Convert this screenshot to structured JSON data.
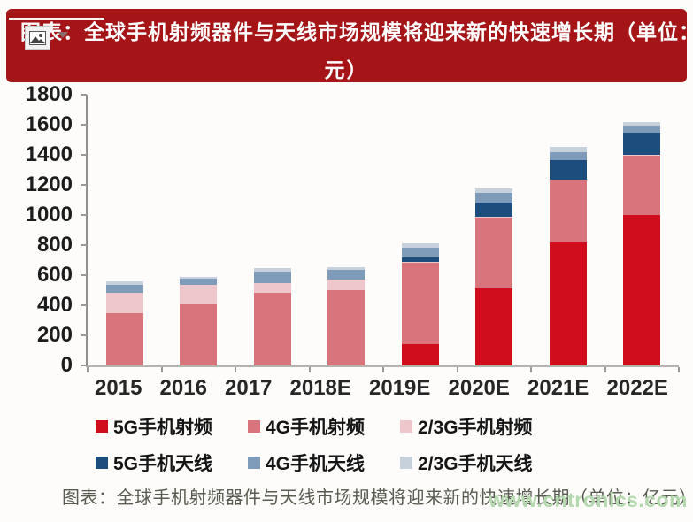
{
  "header": {
    "title_line1": "图表：全球手机射频器件与天线市场规模将迎来新的快速增长期（单位：亿",
    "title_line2": "元）",
    "bg_color": "#a51518"
  },
  "chart_data": {
    "type": "bar",
    "stacked": true,
    "title": "全球手机射频器件与天线市场规模（单位：亿元）",
    "xlabel": "",
    "ylabel": "",
    "unit": "亿元",
    "categories": [
      "2015",
      "2016",
      "2017",
      "2018E",
      "2019E",
      "2020E",
      "2021E",
      "2022E"
    ],
    "series": [
      {
        "name": "5G手机射频",
        "color": "#cf0d1c",
        "values": [
          0,
          0,
          0,
          0,
          140,
          510,
          815,
          1000
        ]
      },
      {
        "name": "4G手机射频",
        "color": "#d8747b",
        "values": [
          345,
          405,
          480,
          500,
          540,
          470,
          415,
          395
        ]
      },
      {
        "name": "2/3G手机射频",
        "color": "#eec7cc",
        "values": [
          140,
          130,
          70,
          70,
          10,
          10,
          5,
          5
        ]
      },
      {
        "name": "5G手机天线",
        "color": "#1d4d7c",
        "values": [
          0,
          0,
          0,
          0,
          25,
          95,
          130,
          145
        ]
      },
      {
        "name": "4G手机天线",
        "color": "#7e9bb9",
        "values": [
          50,
          40,
          75,
          65,
          70,
          60,
          55,
          50
        ]
      },
      {
        "name": "2/3G手机天线",
        "color": "#c7d1db",
        "values": [
          25,
          15,
          20,
          20,
          25,
          30,
          35,
          20
        ]
      }
    ],
    "ylim": [
      0,
      1800
    ],
    "ytick_step": 200,
    "grid": false,
    "legend_position": "bottom"
  },
  "caption": {
    "text": "图表：全球手机射频器件与天线市场规模将迎来新的快速增长期（单位：亿元）"
  },
  "watermark": {
    "text": "www.cntronics.com",
    "color": "#b4d9ae"
  }
}
